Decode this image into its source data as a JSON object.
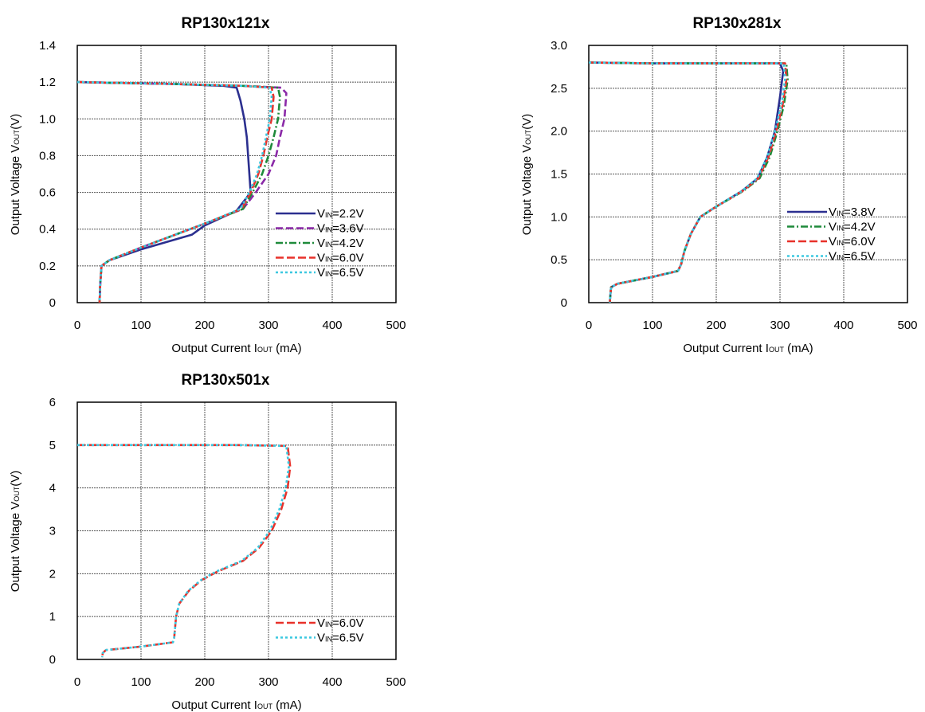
{
  "chart_data": [
    {
      "type": "line",
      "title": "RP130x121x",
      "xlabel": {
        "main": "Output Current I",
        "sub": "OUT",
        "unit": " (mA)"
      },
      "ylabel": {
        "main": "Output Voltage V",
        "sub": "OUT",
        "unit": "(V)"
      },
      "xlim": [
        0,
        500
      ],
      "ylim": [
        0,
        1.4
      ],
      "xticks": [
        "0",
        "100",
        "200",
        "300",
        "400",
        "500"
      ],
      "yticks": [
        "0",
        "0.2",
        "0.4",
        "0.6",
        "0.8",
        "1.0",
        "1.2",
        "1.4"
      ],
      "grid": true,
      "legend_position": "bottom-right",
      "series": [
        {
          "name": "V",
          "name_sub": "IN",
          "name_tail": "=2.2V",
          "color": "#2b2f8f",
          "dash": "none",
          "points": [
            [
              0,
              1.2
            ],
            [
              150,
              1.19
            ],
            [
              230,
              1.18
            ],
            [
              250,
              1.17
            ],
            [
              256,
              1.1
            ],
            [
              262,
              1.0
            ],
            [
              266,
              0.9
            ],
            [
              268,
              0.8
            ],
            [
              270,
              0.7
            ],
            [
              272,
              0.6
            ],
            [
              250,
              0.5
            ],
            [
              200,
              0.42
            ],
            [
              180,
              0.37
            ],
            [
              100,
              0.29
            ],
            [
              50,
              0.23
            ],
            [
              38,
              0.2
            ],
            [
              36,
              0.1
            ],
            [
              35,
              0.0
            ]
          ]
        },
        {
          "name": "V",
          "name_sub": "IN",
          "name_tail": "=3.6V",
          "color": "#8b2aa8",
          "dash": "9,4",
          "points": [
            [
              0,
              1.2
            ],
            [
              150,
              1.19
            ],
            [
              260,
              1.18
            ],
            [
              320,
              1.17
            ],
            [
              328,
              1.14
            ],
            [
              325,
              1.0
            ],
            [
              318,
              0.9
            ],
            [
              312,
              0.8
            ],
            [
              300,
              0.7
            ],
            [
              280,
              0.6
            ],
            [
              260,
              0.51
            ],
            [
              200,
              0.43
            ],
            [
              100,
              0.3
            ],
            [
              50,
              0.23
            ],
            [
              38,
              0.2
            ],
            [
              36,
              0.1
            ],
            [
              35,
              0.0
            ]
          ]
        },
        {
          "name": "V",
          "name_sub": "IN",
          "name_tail": "=4.2V",
          "color": "#1e8a3a",
          "dash": "9,3,2,3",
          "points": [
            [
              0,
              1.2
            ],
            [
              150,
              1.19
            ],
            [
              260,
              1.18
            ],
            [
              315,
              1.17
            ],
            [
              318,
              1.12
            ],
            [
              315,
              1.0
            ],
            [
              308,
              0.9
            ],
            [
              300,
              0.8
            ],
            [
              290,
              0.7
            ],
            [
              275,
              0.6
            ],
            [
              260,
              0.51
            ],
            [
              200,
              0.43
            ],
            [
              100,
              0.3
            ],
            [
              50,
              0.23
            ],
            [
              38,
              0.2
            ],
            [
              36,
              0.1
            ],
            [
              35,
              0.0
            ]
          ]
        },
        {
          "name": "V",
          "name_sub": "IN",
          "name_tail": "=6.0V",
          "color": "#e8312a",
          "dash": "10,4",
          "points": [
            [
              0,
              1.2
            ],
            [
              150,
              1.19
            ],
            [
              260,
              1.18
            ],
            [
              305,
              1.17
            ],
            [
              308,
              1.12
            ],
            [
              305,
              1.0
            ],
            [
              298,
              0.9
            ],
            [
              292,
              0.8
            ],
            [
              284,
              0.7
            ],
            [
              272,
              0.6
            ],
            [
              258,
              0.51
            ],
            [
              200,
              0.43
            ],
            [
              100,
              0.3
            ],
            [
              50,
              0.23
            ],
            [
              38,
              0.2
            ],
            [
              36,
              0.1
            ],
            [
              35,
              0.0
            ]
          ]
        },
        {
          "name": "V",
          "name_sub": "IN",
          "name_tail": "=6.5V",
          "color": "#3cc8e0",
          "dash": "3,3",
          "points": [
            [
              0,
              1.2
            ],
            [
              150,
              1.19
            ],
            [
              260,
              1.18
            ],
            [
              302,
              1.17
            ],
            [
              305,
              1.12
            ],
            [
              302,
              1.0
            ],
            [
              296,
              0.9
            ],
            [
              290,
              0.8
            ],
            [
              282,
              0.7
            ],
            [
              270,
              0.6
            ],
            [
              256,
              0.51
            ],
            [
              200,
              0.43
            ],
            [
              100,
              0.3
            ],
            [
              50,
              0.23
            ],
            [
              38,
              0.2
            ],
            [
              36,
              0.1
            ],
            [
              35,
              0.0
            ]
          ]
        }
      ]
    },
    {
      "type": "line",
      "title": "RP130x281x",
      "xlabel": {
        "main": "Output Current I",
        "sub": "OUT",
        "unit": " (mA)"
      },
      "ylabel": {
        "main": "Output Voltage V",
        "sub": "OUT",
        "unit": "(V)"
      },
      "xlim": [
        0,
        500
      ],
      "ylim": [
        0,
        3.0
      ],
      "xticks": [
        "0",
        "100",
        "200",
        "300",
        "400",
        "500"
      ],
      "yticks": [
        "0",
        "0.5",
        "1.0",
        "1.5",
        "2.0",
        "2.5",
        "3.0"
      ],
      "grid": true,
      "legend_position": "center-right",
      "series": [
        {
          "name": "V",
          "name_sub": "IN",
          "name_tail": "=3.8V",
          "color": "#2b2f8f",
          "dash": "none",
          "points": [
            [
              0,
              2.8
            ],
            [
              100,
              2.79
            ],
            [
              250,
              2.79
            ],
            [
              300,
              2.79
            ],
            [
              305,
              2.7
            ],
            [
              300,
              2.4
            ],
            [
              292,
              2.0
            ],
            [
              280,
              1.7
            ],
            [
              265,
              1.45
            ],
            [
              240,
              1.3
            ],
            [
              200,
              1.12
            ],
            [
              175,
              1.0
            ],
            [
              160,
              0.8
            ],
            [
              150,
              0.6
            ],
            [
              145,
              0.45
            ],
            [
              140,
              0.37
            ],
            [
              100,
              0.3
            ],
            [
              45,
              0.22
            ],
            [
              35,
              0.18
            ],
            [
              34,
              0.1
            ],
            [
              33,
              0.0
            ]
          ]
        },
        {
          "name": "V",
          "name_sub": "IN",
          "name_tail": "=4.2V",
          "color": "#1e8a3a",
          "dash": "9,3,2,3",
          "points": [
            [
              0,
              2.8
            ],
            [
              100,
              2.79
            ],
            [
              250,
              2.79
            ],
            [
              310,
              2.79
            ],
            [
              312,
              2.6
            ],
            [
              306,
              2.3
            ],
            [
              296,
              2.0
            ],
            [
              284,
              1.7
            ],
            [
              268,
              1.45
            ],
            [
              242,
              1.3
            ],
            [
              200,
              1.12
            ],
            [
              175,
              1.0
            ],
            [
              160,
              0.8
            ],
            [
              150,
              0.6
            ],
            [
              145,
              0.45
            ],
            [
              140,
              0.37
            ],
            [
              100,
              0.3
            ],
            [
              45,
              0.22
            ],
            [
              35,
              0.18
            ],
            [
              34,
              0.1
            ],
            [
              33,
              0.0
            ]
          ]
        },
        {
          "name": "V",
          "name_sub": "IN",
          "name_tail": "=6.0V",
          "color": "#e8312a",
          "dash": "10,4",
          "points": [
            [
              0,
              2.8
            ],
            [
              100,
              2.79
            ],
            [
              250,
              2.79
            ],
            [
              308,
              2.79
            ],
            [
              310,
              2.6
            ],
            [
              304,
              2.3
            ],
            [
              294,
              2.0
            ],
            [
              282,
              1.7
            ],
            [
              266,
              1.45
            ],
            [
              241,
              1.3
            ],
            [
              200,
              1.12
            ],
            [
              175,
              1.0
            ],
            [
              160,
              0.8
            ],
            [
              150,
              0.6
            ],
            [
              145,
              0.45
            ],
            [
              140,
              0.37
            ],
            [
              100,
              0.3
            ],
            [
              45,
              0.22
            ],
            [
              35,
              0.18
            ],
            [
              34,
              0.1
            ],
            [
              33,
              0.0
            ]
          ]
        },
        {
          "name": "V",
          "name_sub": "IN",
          "name_tail": "=6.5V",
          "color": "#3cc8e0",
          "dash": "3,3",
          "points": [
            [
              0,
              2.8
            ],
            [
              100,
              2.79
            ],
            [
              250,
              2.79
            ],
            [
              306,
              2.79
            ],
            [
              308,
              2.6
            ],
            [
              302,
              2.3
            ],
            [
              292,
              2.0
            ],
            [
              280,
              1.7
            ],
            [
              264,
              1.45
            ],
            [
              240,
              1.3
            ],
            [
              200,
              1.12
            ],
            [
              175,
              1.0
            ],
            [
              160,
              0.8
            ],
            [
              150,
              0.6
            ],
            [
              145,
              0.45
            ],
            [
              140,
              0.37
            ],
            [
              100,
              0.3
            ],
            [
              45,
              0.22
            ],
            [
              35,
              0.18
            ],
            [
              34,
              0.1
            ],
            [
              33,
              0.0
            ]
          ]
        }
      ]
    },
    {
      "type": "line",
      "title": "RP130x501x",
      "xlabel": {
        "main": "Output Current I",
        "sub": "OUT",
        "unit": " (mA)"
      },
      "ylabel": {
        "main": "Output Voltage V",
        "sub": "OUT",
        "unit": "(V)"
      },
      "xlim": [
        0,
        500
      ],
      "ylim": [
        0,
        6
      ],
      "xticks": [
        "0",
        "100",
        "200",
        "300",
        "400",
        "500"
      ],
      "yticks": [
        "0",
        "1",
        "2",
        "3",
        "4",
        "5",
        "6"
      ],
      "grid": true,
      "legend_position": "bottom-right",
      "series": [
        {
          "name": "V",
          "name_sub": "IN",
          "name_tail": "=6.0V",
          "color": "#e8312a",
          "dash": "10,4",
          "points": [
            [
              0,
              5.0
            ],
            [
              100,
              5.0
            ],
            [
              250,
              5.0
            ],
            [
              330,
              4.98
            ],
            [
              334,
              4.5
            ],
            [
              330,
              4.0
            ],
            [
              320,
              3.5
            ],
            [
              305,
              3.0
            ],
            [
              285,
              2.6
            ],
            [
              260,
              2.3
            ],
            [
              220,
              2.05
            ],
            [
              195,
              1.85
            ],
            [
              175,
              1.6
            ],
            [
              160,
              1.3
            ],
            [
              155,
              1.0
            ],
            [
              152,
              0.5
            ],
            [
              150,
              0.4
            ],
            [
              100,
              0.3
            ],
            [
              45,
              0.22
            ],
            [
              40,
              0.15
            ],
            [
              39,
              0.05
            ]
          ]
        },
        {
          "name": "V",
          "name_sub": "IN",
          "name_tail": "=6.5V",
          "color": "#3cc8e0",
          "dash": "3,3",
          "points": [
            [
              0,
              5.0
            ],
            [
              100,
              5.0
            ],
            [
              250,
              5.0
            ],
            [
              328,
              4.98
            ],
            [
              332,
              4.5
            ],
            [
              327,
              4.0
            ],
            [
              317,
              3.5
            ],
            [
              302,
              3.0
            ],
            [
              283,
              2.6
            ],
            [
              258,
              2.3
            ],
            [
              218,
              2.05
            ],
            [
              194,
              1.85
            ],
            [
              174,
              1.6
            ],
            [
              160,
              1.3
            ],
            [
              155,
              1.0
            ],
            [
              152,
              0.5
            ],
            [
              150,
              0.4
            ],
            [
              100,
              0.3
            ],
            [
              45,
              0.22
            ],
            [
              40,
              0.15
            ],
            [
              39,
              0.05
            ]
          ]
        }
      ]
    }
  ]
}
